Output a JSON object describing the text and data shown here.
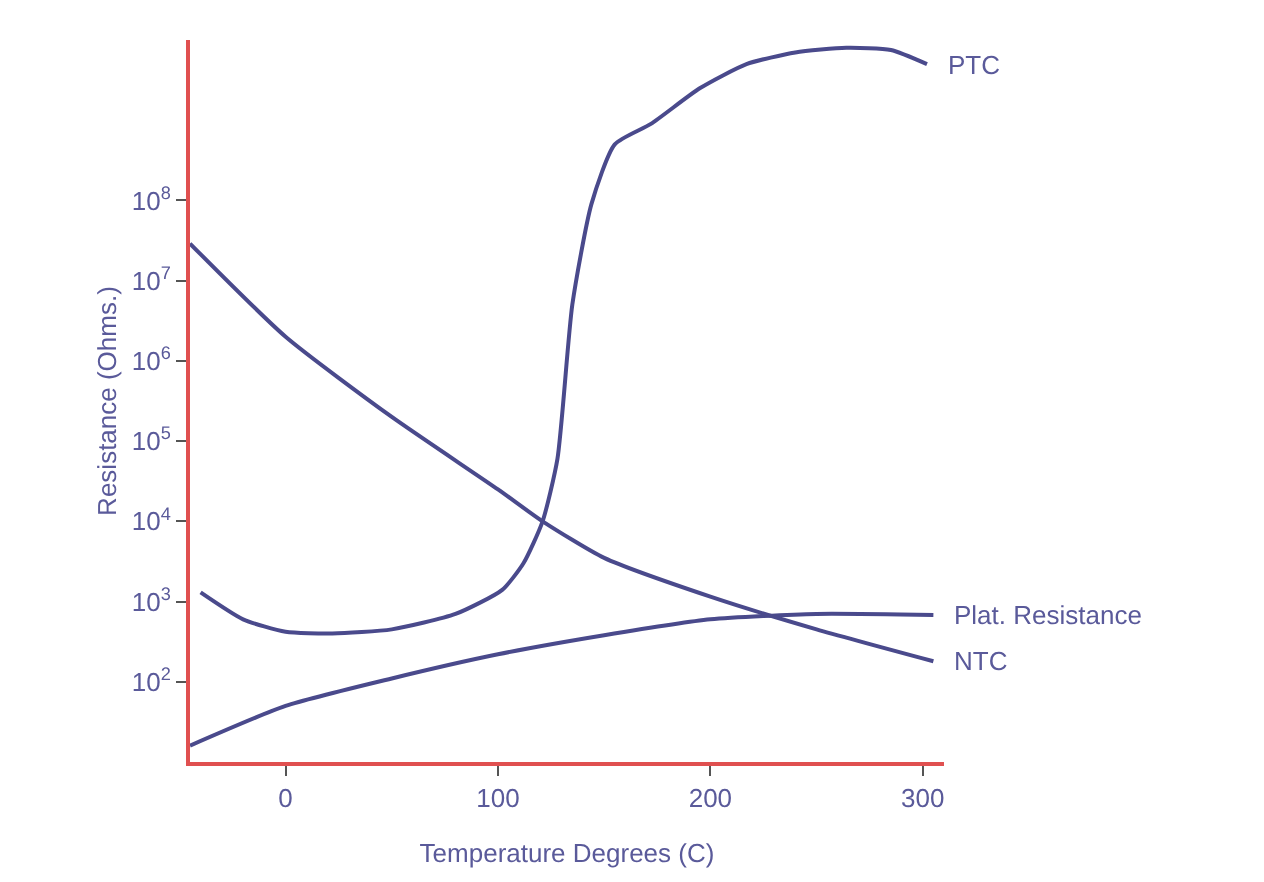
{
  "chart_data": {
    "type": "line",
    "xlabel": "Temperature Degrees (C)",
    "ylabel": "Resistance (Ohms.)",
    "log": "y",
    "xlim": [
      -45,
      310
    ],
    "xticks": [
      0,
      100,
      200,
      300
    ],
    "ylim": [
      10,
      10000000000
    ],
    "yticks": [
      {
        "value": 100,
        "label": "10$^{2}$"
      },
      {
        "value": 1000,
        "label": "10$^{3}$"
      },
      {
        "value": 10000,
        "label": "10$^{4}$"
      },
      {
        "value": 100000,
        "label": "10$^{5}$"
      },
      {
        "value": 1000000,
        "label": "10$^{6}$"
      },
      {
        "value": 10000000,
        "label": "10$^{7}$"
      },
      {
        "value": 100000000,
        "label": "10$^{8}$"
      }
    ],
    "grid": false,
    "legend": false,
    "marker": "none",
    "line_style": "solid",
    "series": [
      {
        "name": "PTC",
        "color": "#4a4a8c",
        "x": [
          -40,
          -20,
          0,
          22,
          50,
          80,
          102,
          112,
          121,
          128,
          135,
          144,
          155,
          172,
          195,
          217,
          240,
          264,
          285,
          302
        ],
        "values": [
          1300,
          600,
          420,
          400,
          450,
          700,
          1400,
          3000,
          10000,
          60000,
          5000000,
          90000000,
          500000000,
          900000000,
          2500000000,
          5000000000,
          7000000000,
          8000000000,
          7500000000,
          5000000000
        ]
      },
      {
        "name": "Plat. Resistance",
        "color": "#4a4a8c",
        "x": [
          -45,
          0,
          50,
          100,
          150,
          200,
          250,
          305
        ],
        "values": [
          16,
          50,
          110,
          220,
          380,
          600,
          700,
          680
        ]
      },
      {
        "name": "NTC",
        "color": "#4a4a8c",
        "x": [
          -45,
          0,
          50,
          100,
          121,
          150,
          200,
          250,
          305
        ],
        "values": [
          29000000,
          2000000,
          200000,
          25000,
          10000,
          3500,
          1150,
          450,
          180
        ]
      }
    ]
  }
}
